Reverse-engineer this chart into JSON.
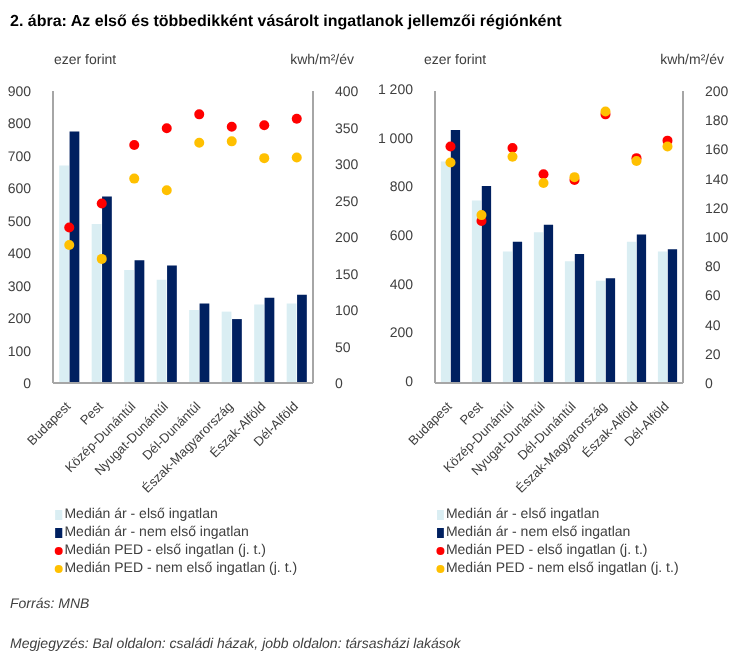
{
  "chart_data": [
    {
      "type": "bar",
      "title": "2. ábra: Az első és többedikként vásárolt ingatlanok jellemzői régiónként",
      "ylabel": "ezer forint",
      "y2label": "kwh/m²/év",
      "categories": [
        "Budapest",
        "Pest",
        "Közép-Dunántúl",
        "Nyugat-Dunántúl",
        "Dél-Dunántúl",
        "Észak-Magyarország",
        "Észak-Alföld",
        "Dél-Alföld"
      ],
      "series": [
        {
          "name": "Medián ár - első ingatlan",
          "color": "#daeef3",
          "values": [
            670,
            490,
            348,
            318,
            225,
            220,
            242,
            245
          ]
        },
        {
          "name": "Medián ár - nem első ingatlan",
          "color": "#002060",
          "values": [
            775,
            575,
            378,
            362,
            245,
            197,
            263,
            272
          ]
        },
        {
          "name": "Medián PED - első ingatlan (j. t.)",
          "color": "#ff0000",
          "type": "scatter",
          "axis": "y2",
          "values": [
            213,
            246,
            326,
            349,
            368,
            351,
            353,
            362
          ]
        },
        {
          "name": "Medián PED - nem első ingatlan (j. t.)",
          "color": "#ffc000",
          "type": "scatter",
          "axis": "y2",
          "values": [
            189,
            170,
            280,
            264,
            329,
            331,
            308,
            309
          ]
        }
      ],
      "ylim": [
        0,
        900
      ],
      "yticks": [
        0,
        100,
        200,
        300,
        400,
        500,
        600,
        700,
        800,
        900
      ],
      "y2lim": [
        0,
        400
      ],
      "y2ticks": [
        0,
        50,
        100,
        150,
        200,
        250,
        300,
        350,
        400
      ],
      "legend": "bottom",
      "marker": "circle"
    },
    {
      "type": "bar",
      "ylabel": "ezer forint",
      "y2label": "kwh/m²/év",
      "categories": [
        "Budapest",
        "Pest",
        "Közép-Dunántúl",
        "Nyugat-Dunántúl",
        "Dél-Dunántúl",
        "Észak-Magyarország",
        "Észak-Alföld",
        "Dél-Alföld"
      ],
      "series": [
        {
          "name": "Medián ár - első ingatlan",
          "color": "#daeef3",
          "values": [
            910,
            750,
            540,
            620,
            500,
            420,
            580,
            540
          ]
        },
        {
          "name": "Medián ár - nem első ingatlan",
          "color": "#002060",
          "values": [
            1040,
            810,
            580,
            650,
            530,
            430,
            610,
            550
          ]
        },
        {
          "name": "Medián PED - első ingatlan (j. t.)",
          "color": "#ff0000",
          "type": "scatter",
          "axis": "y2",
          "values": [
            162,
            111,
            161,
            143,
            139,
            184,
            154,
            166
          ]
        },
        {
          "name": "Medián PED - nem első ingatlan (j. t.)",
          "color": "#ffc000",
          "type": "scatter",
          "axis": "y2",
          "values": [
            151,
            115,
            155,
            137,
            141,
            186,
            152,
            162
          ]
        }
      ],
      "ylim": [
        0,
        1200
      ],
      "yticks": [
        0,
        200,
        400,
        600,
        800,
        {
          "value": 1000,
          "label": "1 000"
        },
        {
          "value": 1200,
          "label": "1 200"
        }
      ],
      "y2lim": [
        0,
        200
      ],
      "y2ticks": [
        0,
        20,
        40,
        60,
        80,
        100,
        120,
        140,
        160,
        180,
        200
      ],
      "legend": "bottom",
      "marker": "circle",
      "annotations": [
        "Forrás: MNB",
        "Megjegyzés: Bal oldalon: családi házak, jobb oldalon: társasházi lakások"
      ]
    }
  ]
}
